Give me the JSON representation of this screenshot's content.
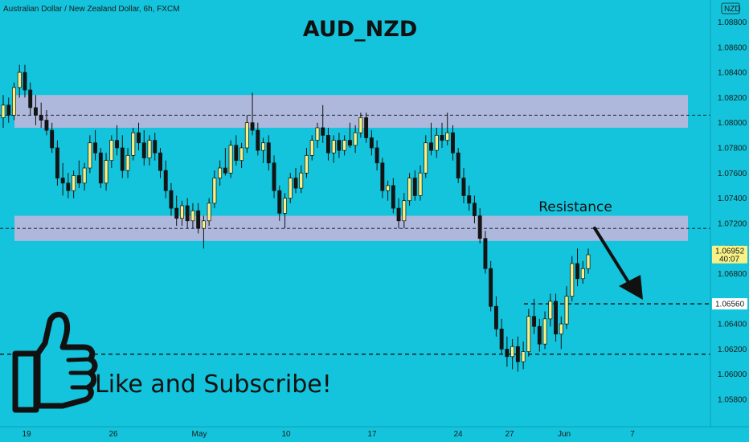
{
  "header": {
    "symbol_desc": "Australian Dollar / New Zealand Dollar, 6h, FXCM",
    "currency_badge": "NZD"
  },
  "colors": {
    "background": "#13c4dc",
    "bull_candle": "#f7f186",
    "bear_candle": "#141414",
    "zone_fill": "#c9b6dc",
    "current_price_tag": "#f7f186",
    "level_tag": "#ffffff"
  },
  "chart_data": {
    "type": "candlestick",
    "title": "AUD_NZD",
    "y_axis": {
      "side": "right",
      "range": [
        1.0578,
        1.0886
      ],
      "ticks": [
        "1.08800",
        "1.08600",
        "1.08400",
        "1.08200",
        "1.08000",
        "1.07800",
        "1.07600",
        "1.07400",
        "1.07200",
        "1.07000",
        "1.06800",
        "1.06400",
        "1.06200",
        "1.06000",
        "1.05800"
      ]
    },
    "x_axis": {
      "ticks": [
        "19",
        "26",
        "May",
        "10",
        "17",
        "24",
        "27",
        "Jun",
        "7"
      ]
    },
    "zones": [
      {
        "name": "upper-supply",
        "low": 1.0796,
        "high": 1.0822
      },
      {
        "name": "resistance",
        "low": 1.0706,
        "high": 1.0726
      }
    ],
    "dashed_levels": [
      1.0806,
      1.0716,
      1.0656,
      1.0616
    ],
    "current_price": {
      "price": "1.06952",
      "countdown": "40:07"
    },
    "target_level": {
      "price": "1.06560"
    },
    "annotations": {
      "resistance_label": "Resistance",
      "call_to_action": "Like and Subscribe!",
      "arrow": "down-right"
    },
    "candles": [
      [
        1.0804,
        1.0822,
        1.0796,
        1.0814
      ],
      [
        1.0814,
        1.082,
        1.08,
        1.0806
      ],
      [
        1.0806,
        1.0832,
        1.0802,
        1.0828
      ],
      [
        1.0828,
        1.0846,
        1.082,
        1.084
      ],
      [
        1.084,
        1.0846,
        1.082,
        1.0826
      ],
      [
        1.0826,
        1.0832,
        1.0806,
        1.0812
      ],
      [
        1.0812,
        1.0822,
        1.0798,
        1.0806
      ],
      [
        1.0806,
        1.0816,
        1.0796,
        1.0802
      ],
      [
        1.0802,
        1.081,
        1.079,
        1.0794
      ],
      [
        1.0794,
        1.08,
        1.0776,
        1.078
      ],
      [
        1.078,
        1.0786,
        1.075,
        1.0756
      ],
      [
        1.0756,
        1.0768,
        1.0742,
        1.0752
      ],
      [
        1.0752,
        1.076,
        1.074,
        1.0746
      ],
      [
        1.0746,
        1.0762,
        1.074,
        1.0758
      ],
      [
        1.0758,
        1.077,
        1.0748,
        1.0752
      ],
      [
        1.0752,
        1.0768,
        1.0746,
        1.0764
      ],
      [
        1.0764,
        1.079,
        1.076,
        1.0784
      ],
      [
        1.0784,
        1.0794,
        1.077,
        1.0776
      ],
      [
        1.0776,
        1.078,
        1.0748,
        1.0752
      ],
      [
        1.0752,
        1.0776,
        1.0746,
        1.077
      ],
      [
        1.077,
        1.079,
        1.0764,
        1.0786
      ],
      [
        1.0786,
        1.0798,
        1.0774,
        1.078
      ],
      [
        1.078,
        1.079,
        1.0756,
        1.0762
      ],
      [
        1.0762,
        1.078,
        1.0756,
        1.0774
      ],
      [
        1.0774,
        1.0796,
        1.077,
        1.0792
      ],
      [
        1.0792,
        1.08,
        1.0778,
        1.0784
      ],
      [
        1.0784,
        1.0794,
        1.0766,
        1.0772
      ],
      [
        1.0772,
        1.079,
        1.0766,
        1.0786
      ],
      [
        1.0786,
        1.0792,
        1.077,
        1.0776
      ],
      [
        1.0776,
        1.078,
        1.0756,
        1.0762
      ],
      [
        1.0762,
        1.077,
        1.074,
        1.0746
      ],
      [
        1.0746,
        1.0752,
        1.0726,
        1.0732
      ],
      [
        1.0732,
        1.0742,
        1.0718,
        1.0724
      ],
      [
        1.0724,
        1.0738,
        1.0718,
        1.0734
      ],
      [
        1.0734,
        1.074,
        1.0716,
        1.0722
      ],
      [
        1.0722,
        1.0736,
        1.0716,
        1.073
      ],
      [
        1.073,
        1.0736,
        1.0712,
        1.0716
      ],
      [
        1.0716,
        1.0726,
        1.07,
        1.0722
      ],
      [
        1.0722,
        1.074,
        1.0718,
        1.0736
      ],
      [
        1.0736,
        1.0762,
        1.0732,
        1.0756
      ],
      [
        1.0756,
        1.077,
        1.075,
        1.0764
      ],
      [
        1.0764,
        1.078,
        1.0758,
        1.076
      ],
      [
        1.076,
        1.0786,
        1.0756,
        1.0782
      ],
      [
        1.0782,
        1.079,
        1.0766,
        1.077
      ],
      [
        1.077,
        1.0784,
        1.0764,
        1.078
      ],
      [
        1.078,
        1.0806,
        1.0776,
        1.08
      ],
      [
        1.08,
        1.0824,
        1.079,
        1.0794
      ],
      [
        1.0794,
        1.08,
        1.0774,
        1.0778
      ],
      [
        1.0778,
        1.0788,
        1.0768,
        1.0784
      ],
      [
        1.0784,
        1.079,
        1.0762,
        1.0768
      ],
      [
        1.0768,
        1.0774,
        1.074,
        1.0746
      ],
      [
        1.0746,
        1.075,
        1.0722,
        1.0728
      ],
      [
        1.0728,
        1.0744,
        1.0716,
        1.074
      ],
      [
        1.074,
        1.076,
        1.0736,
        1.0756
      ],
      [
        1.0756,
        1.0764,
        1.0744,
        1.0748
      ],
      [
        1.0748,
        1.0766,
        1.0744,
        1.076
      ],
      [
        1.076,
        1.078,
        1.0756,
        1.0774
      ],
      [
        1.0774,
        1.079,
        1.077,
        1.0786
      ],
      [
        1.0786,
        1.08,
        1.078,
        1.0796
      ],
      [
        1.0796,
        1.0814,
        1.0784,
        1.079
      ],
      [
        1.079,
        1.0796,
        1.077,
        1.0776
      ],
      [
        1.0776,
        1.079,
        1.0768,
        1.0786
      ],
      [
        1.0786,
        1.0792,
        1.0772,
        1.0778
      ],
      [
        1.0778,
        1.079,
        1.0774,
        1.0786
      ],
      [
        1.0786,
        1.08,
        1.078,
        1.0782
      ],
      [
        1.0782,
        1.0798,
        1.0776,
        1.0792
      ],
      [
        1.0792,
        1.0808,
        1.0788,
        1.0804
      ],
      [
        1.0804,
        1.0808,
        1.0784,
        1.0788
      ],
      [
        1.0788,
        1.0794,
        1.0774,
        1.078
      ],
      [
        1.078,
        1.0786,
        1.0762,
        1.0768
      ],
      [
        1.0768,
        1.0772,
        1.074,
        1.0746
      ],
      [
        1.0746,
        1.0754,
        1.0738,
        1.075
      ],
      [
        1.075,
        1.0756,
        1.0728,
        1.0732
      ],
      [
        1.0732,
        1.074,
        1.0716,
        1.0722
      ],
      [
        1.0722,
        1.0744,
        1.0716,
        1.0738
      ],
      [
        1.0738,
        1.076,
        1.0734,
        1.0756
      ],
      [
        1.0756,
        1.0762,
        1.0738,
        1.0742
      ],
      [
        1.0742,
        1.0766,
        1.0738,
        1.076
      ],
      [
        1.076,
        1.079,
        1.0756,
        1.0784
      ],
      [
        1.0784,
        1.08,
        1.0774,
        1.0778
      ],
      [
        1.0778,
        1.0796,
        1.0772,
        1.079
      ],
      [
        1.079,
        1.08,
        1.078,
        1.0786
      ],
      [
        1.0786,
        1.0808,
        1.0782,
        1.0792
      ],
      [
        1.0792,
        1.0798,
        1.077,
        1.0776
      ],
      [
        1.0776,
        1.078,
        1.0752,
        1.0756
      ],
      [
        1.0756,
        1.0764,
        1.0736,
        1.0742
      ],
      [
        1.0742,
        1.075,
        1.073,
        1.0736
      ],
      [
        1.0736,
        1.0742,
        1.072,
        1.0726
      ],
      [
        1.0726,
        1.0732,
        1.0704,
        1.0708
      ],
      [
        1.0708,
        1.0714,
        1.068,
        1.0684
      ],
      [
        1.0684,
        1.069,
        1.065,
        1.0654
      ],
      [
        1.0654,
        1.0662,
        1.063,
        1.0636
      ],
      [
        1.0636,
        1.0644,
        1.0616,
        1.062
      ],
      [
        1.062,
        1.063,
        1.0606,
        1.0614
      ],
      [
        1.0614,
        1.0628,
        1.0604,
        1.0622
      ],
      [
        1.0622,
        1.063,
        1.0602,
        1.061
      ],
      [
        1.061,
        1.0626,
        1.0604,
        1.0618
      ],
      [
        1.0618,
        1.0652,
        1.0614,
        1.0646
      ],
      [
        1.0646,
        1.066,
        1.0632,
        1.0638
      ],
      [
        1.0638,
        1.0644,
        1.0618,
        1.0624
      ],
      [
        1.0624,
        1.065,
        1.062,
        1.0644
      ],
      [
        1.0644,
        1.0664,
        1.0638,
        1.0658
      ],
      [
        1.0658,
        1.0664,
        1.0626,
        1.0632
      ],
      [
        1.0632,
        1.0646,
        1.062,
        1.064
      ],
      [
        1.064,
        1.067,
        1.0636,
        1.0662
      ],
      [
        1.0662,
        1.0694,
        1.0658,
        1.0688
      ],
      [
        1.0688,
        1.07,
        1.067,
        1.0676
      ],
      [
        1.0676,
        1.069,
        1.0672,
        1.0684
      ],
      [
        1.0684,
        1.07,
        1.068,
        1.0695
      ]
    ]
  }
}
